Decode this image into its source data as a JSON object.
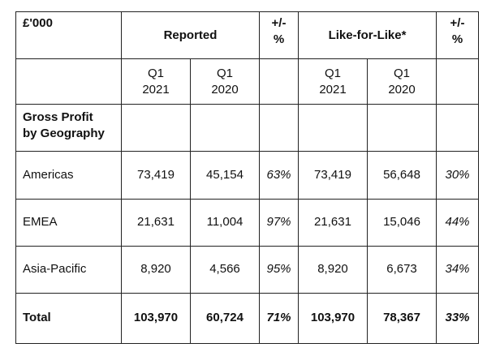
{
  "table": {
    "corner_label": "£'000",
    "group_reported": "Reported",
    "group_lfl": "Like-for-Like*",
    "pct_header_line1": "+/-",
    "pct_header_line2": "%",
    "periods": [
      {
        "line1": "Q1",
        "line2": "2021"
      },
      {
        "line1": "Q1",
        "line2": "2020"
      },
      {
        "line1": "Q1",
        "line2": "2021"
      },
      {
        "line1": "Q1",
        "line2": "2020"
      }
    ],
    "section_line1": "Gross Profit",
    "section_line2": "by Geography",
    "rows": [
      {
        "label": "Americas",
        "rep_2021": "73,419",
        "rep_2020": "45,154",
        "rep_pct": "63%",
        "lfl_2021": "73,419",
        "lfl_2020": "56,648",
        "lfl_pct": "30%"
      },
      {
        "label": "EMEA",
        "rep_2021": "21,631",
        "rep_2020": "11,004",
        "rep_pct": "97%",
        "lfl_2021": "21,631",
        "lfl_2020": "15,046",
        "lfl_pct": "44%"
      },
      {
        "label": "Asia-Pacific",
        "rep_2021": "8,920",
        "rep_2020": "4,566",
        "rep_pct": "95%",
        "lfl_2021": "8,920",
        "lfl_2020": "6,673",
        "lfl_pct": "34%"
      },
      {
        "label": "Total",
        "rep_2021": "103,970",
        "rep_2020": "60,724",
        "rep_pct": "71%",
        "lfl_2021": "103,970",
        "lfl_2020": "78,367",
        "lfl_pct": "33%"
      }
    ]
  }
}
